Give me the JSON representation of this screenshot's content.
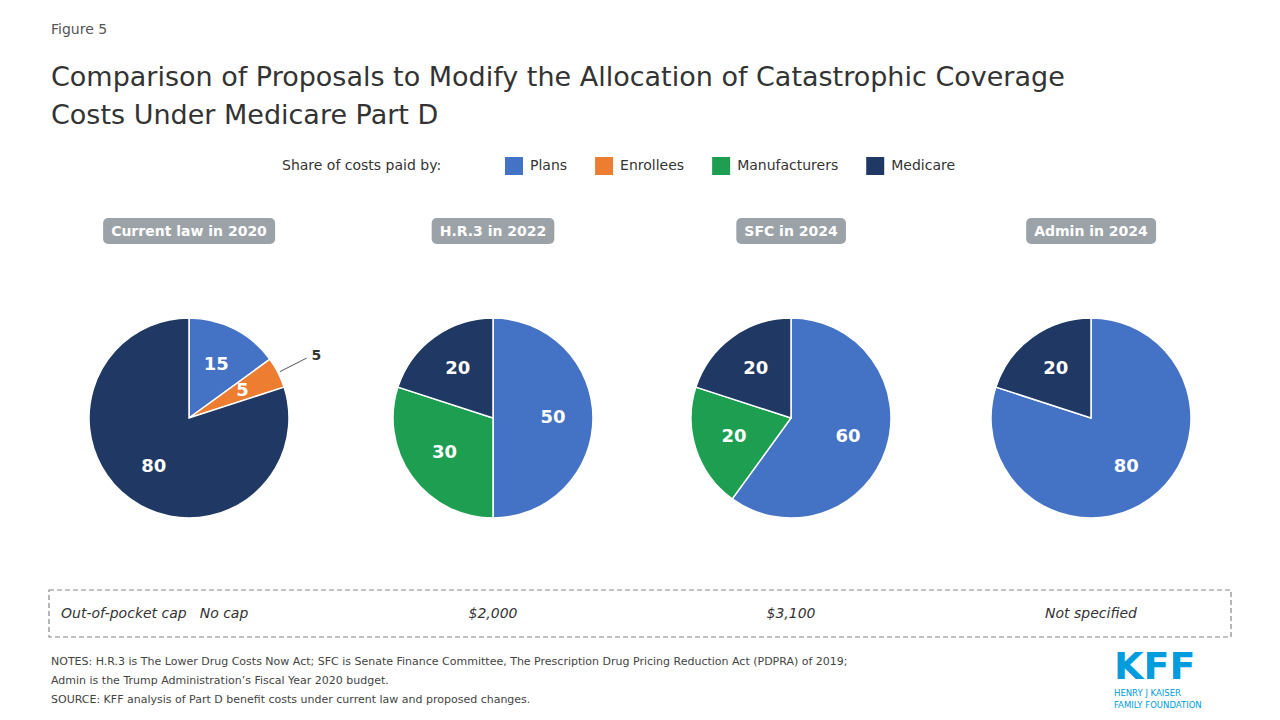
{
  "figure_label": "Figure 5",
  "title": [
    "Comparison of Proposals to Modify the Allocation of Catastrophic Coverage",
    "Costs Under Medicare Part D"
  ],
  "legend_title": "Share of costs paid by:",
  "legend_items": [
    {
      "name": "Plans",
      "color": "#4472C4"
    },
    {
      "name": "Enrollees",
      "color": "#ED7D31"
    },
    {
      "name": "Manufacturers",
      "color": "#1E9E50"
    },
    {
      "name": "Medicare",
      "color": "#1F3864"
    }
  ],
  "row_label": "Out-of-pocket cap",
  "notes": [
    "NOTES: H.R.3 is The Lower Drug Costs Now Act; SFC is Senate Finance Committee, The Prescription Drug Pricing Reduction Act (PDPRA) of 2019;",
    "Admin is the Trump Administration’s Fiscal Year 2020 budget.",
    "SOURCE: KFF analysis of Part D benefit costs under current law and proposed changes."
  ],
  "logo": [
    "KFF",
    "HENRY J KAISER",
    "FAMILY FOUNDATION"
  ],
  "chart_data": [
    {
      "type": "pie",
      "title": "Current law in 2020",
      "categories": [
        "Plans",
        "Enrollees",
        "Medicare"
      ],
      "values": [
        15,
        5,
        80
      ],
      "colors": [
        "#4472C4",
        "#ED7D31",
        "#1F3864"
      ],
      "data_labels": true,
      "annotations": [
        {
          "label": "5",
          "category": "Enrollees"
        }
      ],
      "out_of_pocket_cap": "No cap"
    },
    {
      "type": "pie",
      "title": "H.R.3 in 2022",
      "categories": [
        "Plans",
        "Manufacturers",
        "Medicare"
      ],
      "values": [
        50,
        30,
        20
      ],
      "colors": [
        "#4472C4",
        "#1E9E50",
        "#1F3864"
      ],
      "data_labels": true,
      "out_of_pocket_cap": "$2,000"
    },
    {
      "type": "pie",
      "title": "SFC in 2024",
      "categories": [
        "Plans",
        "Manufacturers",
        "Medicare"
      ],
      "values": [
        60,
        20,
        20
      ],
      "colors": [
        "#4472C4",
        "#1E9E50",
        "#1F3864"
      ],
      "data_labels": true,
      "out_of_pocket_cap": "$3,100"
    },
    {
      "type": "pie",
      "title": "Admin in 2024",
      "categories": [
        "Plans",
        "Medicare"
      ],
      "values": [
        80,
        20
      ],
      "colors": [
        "#4472C4",
        "#1F3864"
      ],
      "data_labels": true,
      "out_of_pocket_cap": "Not specified"
    }
  ]
}
